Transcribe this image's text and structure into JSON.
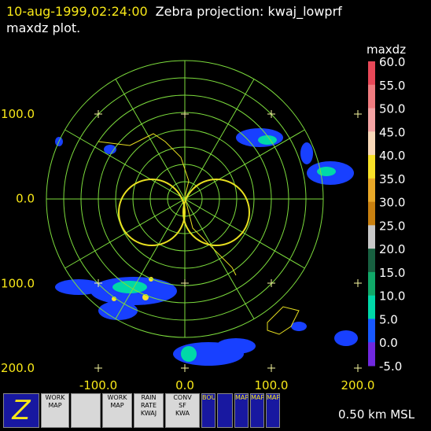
{
  "header": {
    "time": "10-aug-1999,02:24:00",
    "description": "Zebra projection: kwaj_lowprf maxdz plot."
  },
  "y_axis_labels": [
    "100.0",
    "0.0",
    "100.0",
    "200.0"
  ],
  "x_axis_labels": [
    "-100.0",
    "0.0",
    "100.0",
    "200.0"
  ],
  "colorbar": {
    "field": "maxdz",
    "labels": [
      "60.0",
      "55.0",
      "50.0",
      "45.0",
      "40.0",
      "35.0",
      "30.0",
      "25.0",
      "20.0",
      "15.0",
      "10.0",
      "5.0",
      "0.0",
      "-5.0"
    ],
    "colors": [
      "#e84858",
      "#f07c80",
      "#f4a4a4",
      "#f8d8b8",
      "#f8e028",
      "#e8a828",
      "#c88010",
      "#c8c8c8",
      "#186040",
      "#10a868",
      "#00d8a8",
      "#1858ff",
      "#7028e0"
    ]
  },
  "toolbar": {
    "buttons": [
      "WORK",
      "MAP",
      "WORK",
      "MAP",
      "RAIN",
      "RATE",
      "KWAJ",
      "CONV",
      "SF",
      "KWA",
      "BOUNDS",
      "MAP",
      "MAP",
      "MAP"
    ]
  },
  "footer": {
    "level": "0.50 km MSL"
  }
}
